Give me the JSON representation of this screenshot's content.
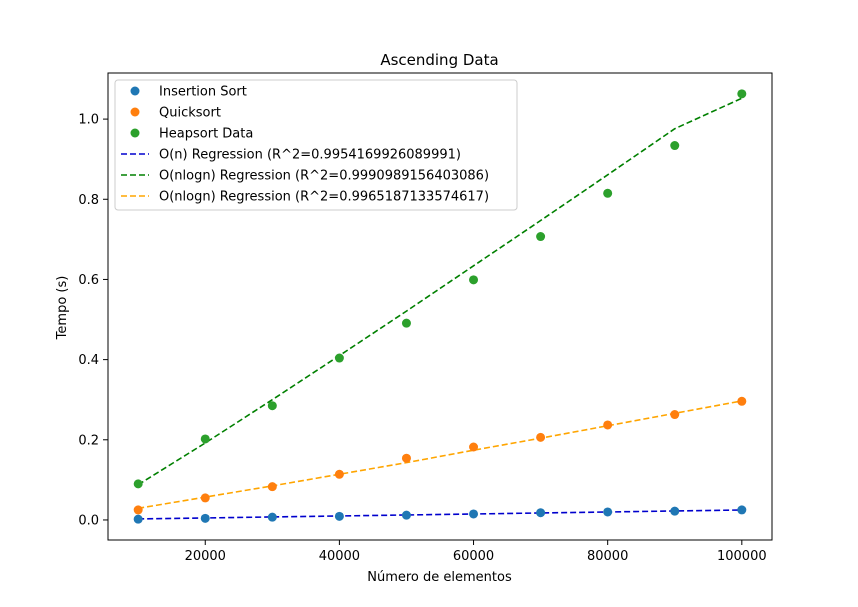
{
  "chart_data": {
    "type": "scatter",
    "title": "Ascending Data",
    "xlabel": "Número de elementos",
    "ylabel": "Tempo (s)",
    "xlim": [
      5500,
      104500
    ],
    "ylim": [
      -0.05,
      1.115
    ],
    "xticks": [
      20000,
      40000,
      60000,
      80000,
      100000
    ],
    "yticks": [
      0.0,
      0.2,
      0.4,
      0.6,
      0.8,
      1.0
    ],
    "xtick_labels": [
      "20000",
      "40000",
      "60000",
      "80000",
      "100000"
    ],
    "ytick_labels": [
      "0.0",
      "0.2",
      "0.4",
      "0.6",
      "0.8",
      "1.0"
    ],
    "grid": false,
    "legend_position": "top-left",
    "x": [
      10000,
      20000,
      30000,
      40000,
      50000,
      60000,
      70000,
      80000,
      90000,
      100000
    ],
    "series": [
      {
        "name": "Insertion Sort",
        "kind": "points",
        "color": "#1f77b4",
        "values": [
          0.002,
          0.004,
          0.007,
          0.009,
          0.012,
          0.015,
          0.018,
          0.02,
          0.022,
          0.025
        ]
      },
      {
        "name": "Quicksort",
        "kind": "points",
        "color": "#ff7f0e",
        "values": [
          0.025,
          0.055,
          0.083,
          0.114,
          0.154,
          0.182,
          0.206,
          0.237,
          0.263,
          0.296
        ]
      },
      {
        "name": "Heapsort Data",
        "kind": "points",
        "color": "#2ca02c",
        "values": [
          0.09,
          0.202,
          0.285,
          0.404,
          0.491,
          0.599,
          0.707,
          0.815,
          0.934,
          1.063
        ]
      },
      {
        "name": "O(n) Regression (R^2=0.9954169926089991)",
        "kind": "dashed",
        "color": "#0000cd",
        "values": [
          0.0025,
          0.005,
          0.0075,
          0.01,
          0.0124,
          0.0149,
          0.0174,
          0.0199,
          0.0224,
          0.0249
        ]
      },
      {
        "name": "O(nlogn) Regression (R^2=0.9990989156403086)",
        "kind": "dashed",
        "color": "#008000",
        "values": [
          0.088,
          0.192,
          0.3,
          0.41,
          0.521,
          0.634,
          0.747,
          0.861,
          0.976,
          1.052
        ]
      },
      {
        "name": "O(nlogn) Regression (R^2=0.9965187133574617)",
        "kind": "dashed",
        "color": "#ffa500",
        "values": [
          0.029,
          0.057,
          0.085,
          0.114,
          0.143,
          0.174,
          0.204,
          0.235,
          0.266,
          0.297
        ]
      }
    ]
  }
}
